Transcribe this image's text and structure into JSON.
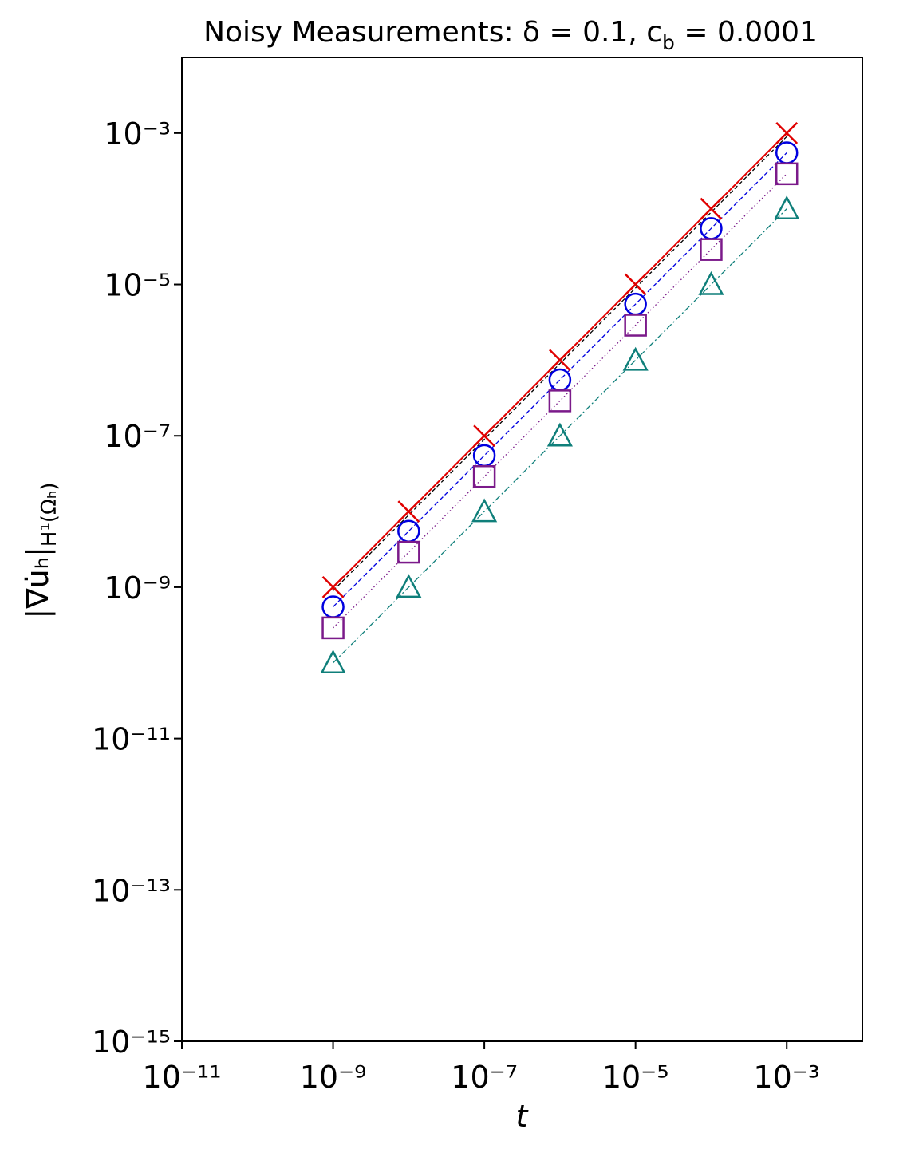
{
  "chart_data": {
    "type": "line",
    "title": "Noisy Measurements: δ = 0.1, c",
    "title_subscript": "b",
    "title_end": " = 0.0001",
    "xlabel": "t",
    "ylabel": "|∇u̇ₕ|",
    "ylabel_subscript": "H¹(Ωₕ)",
    "xscale": "log",
    "yscale": "log",
    "xlim": [
      1e-11,
      0.01
    ],
    "ylim": [
      1e-15,
      0.01
    ],
    "xticks": [
      {
        "value": 1e-11,
        "label": "10⁻¹¹"
      },
      {
        "value": 1e-09,
        "label": "10⁻⁹"
      },
      {
        "value": 1e-07,
        "label": "10⁻⁷"
      },
      {
        "value": 1e-05,
        "label": "10⁻⁵"
      },
      {
        "value": 0.001,
        "label": "10⁻³"
      }
    ],
    "yticks": [
      {
        "value": 1e-15,
        "label": "10⁻¹⁵"
      },
      {
        "value": 1e-13,
        "label": "10⁻¹³"
      },
      {
        "value": 1e-11,
        "label": "10⁻¹¹"
      },
      {
        "value": 1e-09,
        "label": "10⁻⁹"
      },
      {
        "value": 1e-07,
        "label": "10⁻⁷"
      },
      {
        "value": 1e-05,
        "label": "10⁻⁵"
      },
      {
        "value": 0.001,
        "label": "10⁻³"
      }
    ],
    "x": [
      1e-09,
      1e-08,
      1e-07,
      1e-06,
      1e-05,
      0.0001,
      0.001
    ],
    "series": [
      {
        "color": "#000000",
        "linestyle": "dashed-thin",
        "marker": "none",
        "values": [
          9e-10,
          9e-09,
          9e-08,
          9e-07,
          9e-06,
          9e-05,
          0.0009
        ]
      },
      {
        "color": "#e00000",
        "linestyle": "solid",
        "marker": "x",
        "values": [
          1e-09,
          1e-08,
          1e-07,
          1e-06,
          1e-05,
          0.0001,
          0.001
        ]
      },
      {
        "color": "#0000e0",
        "linestyle": "dashed",
        "marker": "circle",
        "values": [
          5.5e-10,
          5.5e-09,
          5.5e-08,
          5.5e-07,
          5.5e-06,
          5.5e-05,
          0.00055
        ]
      },
      {
        "color": "#7b1a8a",
        "linestyle": "dotted",
        "marker": "square",
        "values": [
          2.9e-10,
          2.9e-09,
          2.9e-08,
          2.9e-07,
          2.9e-06,
          2.9e-05,
          0.00029
        ]
      },
      {
        "color": "#0f7f7a",
        "linestyle": "dashdot",
        "marker": "triangle",
        "values": [
          1e-10,
          1e-09,
          1e-08,
          1e-07,
          1e-06,
          1e-05,
          0.0001
        ]
      }
    ]
  }
}
